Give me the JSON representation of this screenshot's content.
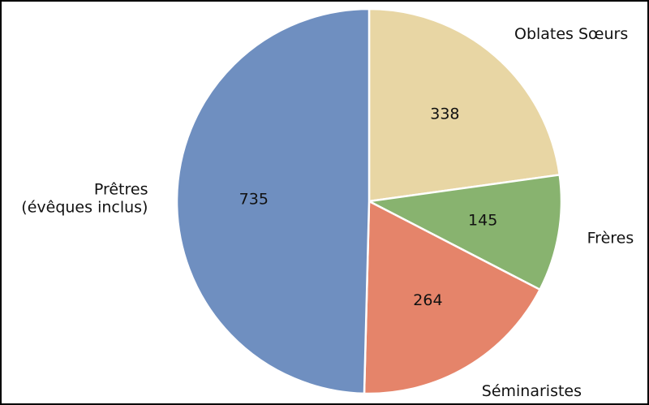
{
  "chart_data": {
    "type": "pie",
    "categories": [
      "Oblates Sœurs",
      "Frères",
      "Séminaristes",
      "Prêtres\n(évêques inclus)"
    ],
    "values": [
      338,
      145,
      264,
      735
    ],
    "colors": [
      "#e8d6a4",
      "#88b36f",
      "#e5846a",
      "#6f8fc0"
    ],
    "start_angle": 90,
    "direction": "clockwise"
  }
}
